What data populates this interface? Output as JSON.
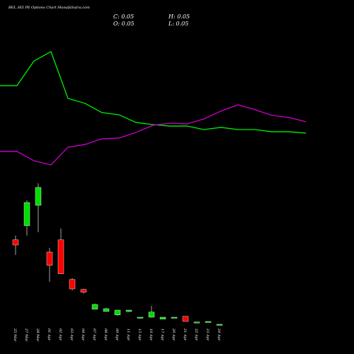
{
  "chart_data": {
    "type": "candlestick",
    "title": "BEL 365 PE Options Chart MunafaSutra.com",
    "annotations": [
      "C: 0.05",
      "H: 0.05",
      "O: 0.05",
      "L: 0.05"
    ],
    "categories": [
      "25 Mar",
      "27 Mar",
      "28 Mar",
      "01 Apr",
      "02 Apr",
      "03 Apr",
      "04 Apr",
      "07 Apr",
      "08 Apr",
      "09 Apr",
      "11 Apr",
      "15 Apr",
      "16 Apr",
      "17 Apr",
      "20 Apr",
      "21 Apr",
      "22 Apr",
      "23 Apr",
      "24 Apr"
    ],
    "open": [
      3.03,
      3.53,
      4.25,
      2.6,
      3.03,
      1.63,
      1.28,
      0.58,
      0.5,
      0.38,
      0.5,
      0.3,
      0.3,
      0.23,
      0.3,
      0.33,
      0.13,
      0.15,
      0.05
    ],
    "high": [
      3.18,
      4.43,
      5.03,
      2.75,
      3.43,
      1.68,
      1.3,
      0.78,
      0.63,
      0.55,
      0.55,
      0.3,
      0.7,
      0.3,
      0.3,
      0.33,
      0.13,
      0.15,
      0.05
    ],
    "low": [
      2.5,
      3.18,
      3.3,
      1.55,
      1.83,
      1.25,
      1.13,
      0.58,
      0.5,
      0.35,
      0.48,
      0.3,
      0.28,
      0.23,
      0.3,
      0.15,
      0.13,
      0.15,
      0.05
    ],
    "close": [
      2.85,
      4.35,
      4.88,
      2.13,
      1.83,
      1.3,
      1.18,
      0.75,
      0.6,
      0.55,
      0.55,
      0.3,
      0.48,
      0.3,
      0.3,
      0.15,
      0.13,
      0.15,
      0.05
    ],
    "ylim": [
      0,
      5.5
    ],
    "up_color": "#00dd00",
    "down_color": "#ff0000",
    "lines": {
      "ylim": [
        0,
        100
      ],
      "series": [
        {
          "color": "#00ee00",
          "values": [
            67.1,
            67.1,
            87.6,
            95.3,
            56.5,
            52.4,
            44.7,
            42.9,
            36.5,
            34.7,
            33.5,
            33.5,
            30.6,
            32.4,
            30.6,
            30.6,
            28.8,
            28.8,
            27.6
          ]
        },
        {
          "color": "#cc00cc",
          "values": [
            12.4,
            12.4,
            4.7,
            1.2,
            15.9,
            18.2,
            22.9,
            23.5,
            28.2,
            34.1,
            35.9,
            35.3,
            39.4,
            45.9,
            51.2,
            47.1,
            42.4,
            40.6,
            37.1
          ]
        }
      ]
    }
  }
}
